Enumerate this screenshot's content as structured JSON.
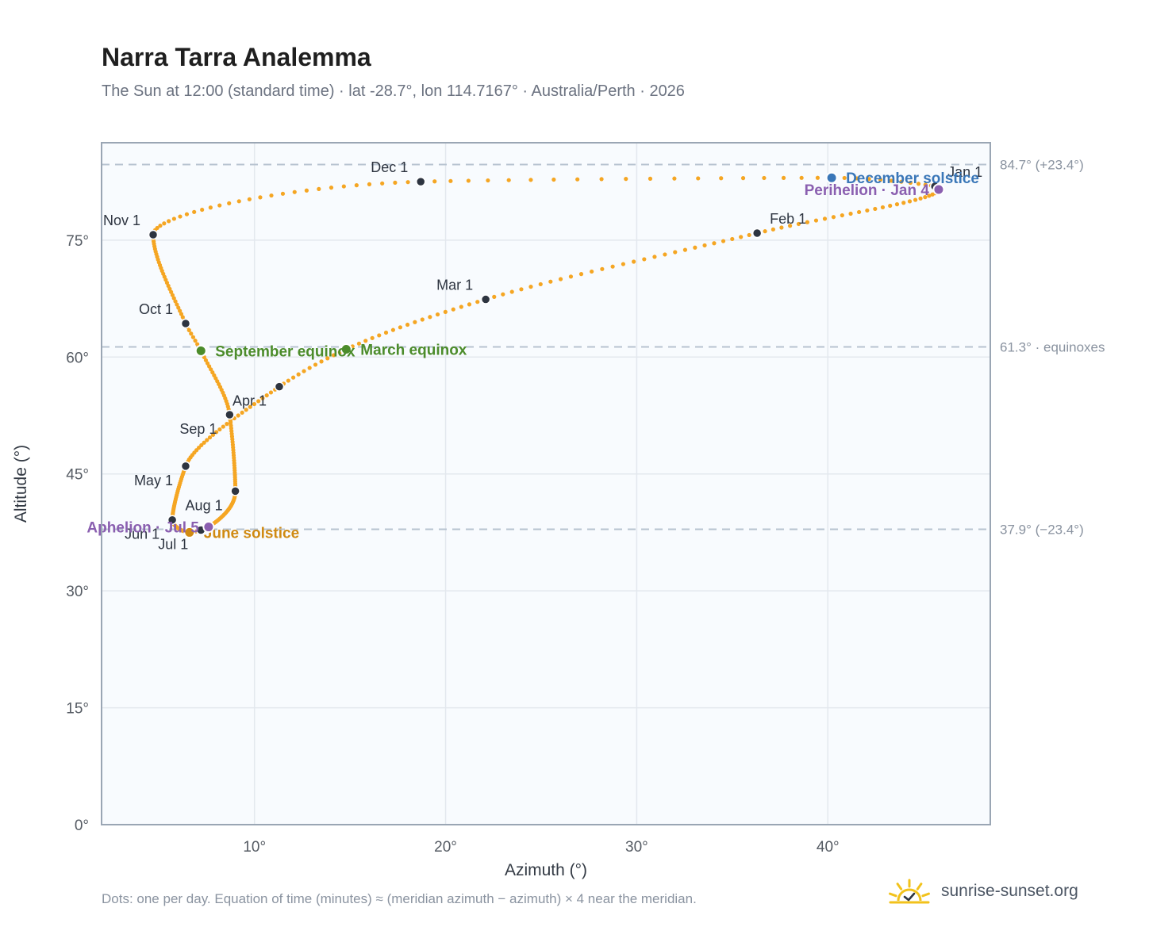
{
  "header": {
    "title": "Narra Tarra Analemma",
    "subtitle": "The Sun at 12:00 (standard time) · lat -28.7°, lon 114.7167° · Australia/Perth · 2026"
  },
  "footer": {
    "note": "Dots: one per day. Equation of time (minutes) ≈ (meridian azimuth − azimuth) × 4 near the meridian.",
    "brand": "sunrise-sunset.org"
  },
  "colors": {
    "curve": "#f5a623",
    "month_marker": "#2d3440",
    "equinox": "#4c8c2b",
    "december_solstice": "#3a77b8",
    "june_solstice": "#d08a12",
    "apsis": "#8a5fb0",
    "reference_line": "#b7c3d0",
    "plot_background": "#f8fbfe",
    "plot_border": "#9aa6b4",
    "grid": "#e3e8ee",
    "brand_sun": "#f2c21b"
  },
  "chart_data": {
    "type": "scatter",
    "title": "Narra Tarra Analemma",
    "xlabel": "Azimuth (°)",
    "ylabel": "Altitude (°)",
    "xlim": [
      2,
      48.5
    ],
    "ylim": [
      0,
      87.5
    ],
    "x_ticks": [
      10,
      20,
      30,
      40
    ],
    "x_tick_labels": [
      "10°",
      "20°",
      "30°",
      "40°"
    ],
    "y_ticks": [
      0,
      15,
      30,
      45,
      60,
      75
    ],
    "y_tick_labels": [
      "0°",
      "15°",
      "30°",
      "45°",
      "60°",
      "75°"
    ],
    "grid": true,
    "anchors": [
      {
        "label": "Jan 1",
        "x": 45.6,
        "y": 81.9
      },
      {
        "label": "Jan 4",
        "x": 45.8,
        "y": 81.5
      },
      {
        "label": "Feb 1",
        "x": 36.3,
        "y": 75.9
      },
      {
        "label": "Mar 1",
        "x": 22.1,
        "y": 67.4
      },
      {
        "label": "Mar 20",
        "x": 14.8,
        "y": 61.0
      },
      {
        "label": "Apr 1",
        "x": 11.3,
        "y": 56.2
      },
      {
        "label": "May 1",
        "x": 6.4,
        "y": 46.0
      },
      {
        "label": "Jun 1",
        "x": 5.7,
        "y": 39.1
      },
      {
        "label": "Jun 21",
        "x": 6.6,
        "y": 37.5
      },
      {
        "label": "Jul 1",
        "x": 7.2,
        "y": 37.8
      },
      {
        "label": "Jul 5",
        "x": 7.6,
        "y": 38.2
      },
      {
        "label": "Aug 1",
        "x": 9.0,
        "y": 42.8
      },
      {
        "label": "Sep 1",
        "x": 8.7,
        "y": 52.6
      },
      {
        "label": "Sep 23",
        "x": 7.2,
        "y": 60.8
      },
      {
        "label": "Oct 1",
        "x": 6.4,
        "y": 64.3
      },
      {
        "label": "Nov 1",
        "x": 4.7,
        "y": 75.7
      },
      {
        "label": "Dec 1",
        "x": 18.7,
        "y": 82.5
      },
      {
        "label": "Dec 21",
        "x": 40.2,
        "y": 83.0
      },
      {
        "label": "Dec 31",
        "x": 45.4,
        "y": 82.0
      }
    ],
    "month_markers": [
      {
        "label": "Jan 1",
        "x": 45.6,
        "y": 81.9,
        "label_pos": "above-right"
      },
      {
        "label": "Feb 1",
        "x": 36.3,
        "y": 75.9,
        "label_pos": "above-right"
      },
      {
        "label": "Mar 1",
        "x": 22.1,
        "y": 67.4,
        "label_pos": "above-left"
      },
      {
        "label": "Apr 1",
        "x": 11.3,
        "y": 56.2,
        "label_pos": "below-left"
      },
      {
        "label": "May 1",
        "x": 6.4,
        "y": 46.0,
        "label_pos": "below-left"
      },
      {
        "label": "Jun 1",
        "x": 5.7,
        "y": 39.1,
        "label_pos": "below-left"
      },
      {
        "label": "Jul 1",
        "x": 7.2,
        "y": 37.8,
        "label_pos": "below-left"
      },
      {
        "label": "Aug 1",
        "x": 9.0,
        "y": 42.8,
        "label_pos": "below-left"
      },
      {
        "label": "Sep 1",
        "x": 8.7,
        "y": 52.6,
        "label_pos": "below-left"
      },
      {
        "label": "Oct 1",
        "x": 6.4,
        "y": 64.3,
        "label_pos": "above-left"
      },
      {
        "label": "Nov 1",
        "x": 4.7,
        "y": 75.7,
        "label_pos": "above-left"
      },
      {
        "label": "Dec 1",
        "x": 18.7,
        "y": 82.5,
        "label_pos": "above-left"
      }
    ],
    "events": [
      {
        "label": "March equinox",
        "x": 14.8,
        "y": 61.0,
        "color": "#4c8c2b"
      },
      {
        "label": "September equinox",
        "x": 7.2,
        "y": 60.8,
        "color": "#4c8c2b"
      },
      {
        "label": "June solstice",
        "x": 6.6,
        "y": 37.5,
        "color": "#d08a12"
      },
      {
        "label": "December solstice",
        "x": 40.2,
        "y": 83.0,
        "color": "#3a77b8"
      },
      {
        "label": "Perihelion · Jan 4",
        "x": 45.8,
        "y": 81.5,
        "color": "#8a5fb0",
        "label_side": "left"
      },
      {
        "label": "Aphelion · Jul 5",
        "x": 7.6,
        "y": 38.2,
        "color": "#8a5fb0",
        "label_side": "left"
      }
    ],
    "reference_lines": [
      {
        "y": 84.7,
        "label": "84.7° (+23.4°)"
      },
      {
        "y": 61.3,
        "label": "61.3° · equinoxes"
      },
      {
        "y": 37.9,
        "label": "37.9° (−23.4°)"
      }
    ]
  }
}
